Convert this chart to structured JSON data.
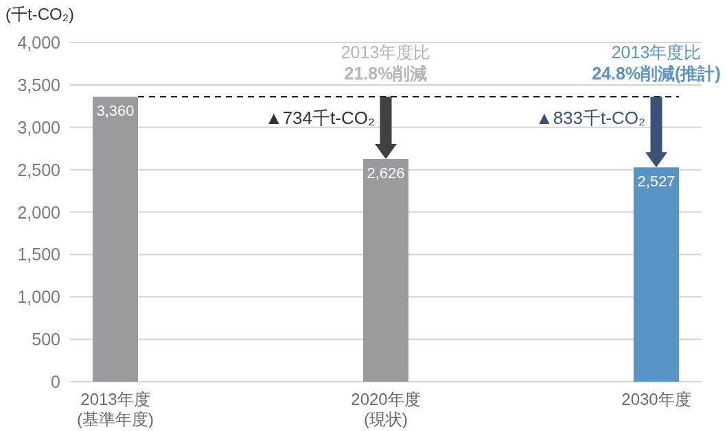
{
  "chart_data": {
    "type": "bar",
    "ylabel": "(千t-CO₂)",
    "categories": [
      "2013年度\n(基準年度)",
      "2020年度\n(現状)",
      "2030年度"
    ],
    "values": [
      3360,
      2626,
      2527
    ],
    "colors": [
      "#9a9b9f",
      "#9a9b9f",
      "#5a94c7"
    ],
    "value_labels": [
      "3,360",
      "2,626",
      "2,527"
    ],
    "ylim": [
      0,
      4000
    ],
    "yticks": [
      0,
      500,
      {
        "value": 1000,
        "label": "1,000"
      },
      {
        "value": 1500,
        "label": "1,500"
      },
      {
        "value": 2000,
        "label": "2,000"
      },
      {
        "value": 2500,
        "label": "2,500"
      },
      {
        "value": 3000,
        "label": "3,000"
      },
      {
        "value": 3500,
        "label": "3,500"
      },
      {
        "value": 4000,
        "label": "4,000"
      }
    ],
    "grid": "y",
    "ref_lines": [
      {
        "axis": "y",
        "value": 3360,
        "color": "#222222",
        "line_style": "dashed"
      }
    ],
    "annotations": [
      {
        "text": "2013年度比\n21.8%削減",
        "x": "2020年度\n(現状)",
        "y": 3360
      },
      {
        "text": "▲734千t-CO₂",
        "x": "2020年度\n(現状)",
        "y": 2626
      },
      {
        "text": "2013年度比\n24.8%削減(推計)",
        "x": "2030年度",
        "y": 3360
      },
      {
        "text": "▲833千t-CO₂",
        "x": "2030年度",
        "y": 2527
      }
    ]
  }
}
